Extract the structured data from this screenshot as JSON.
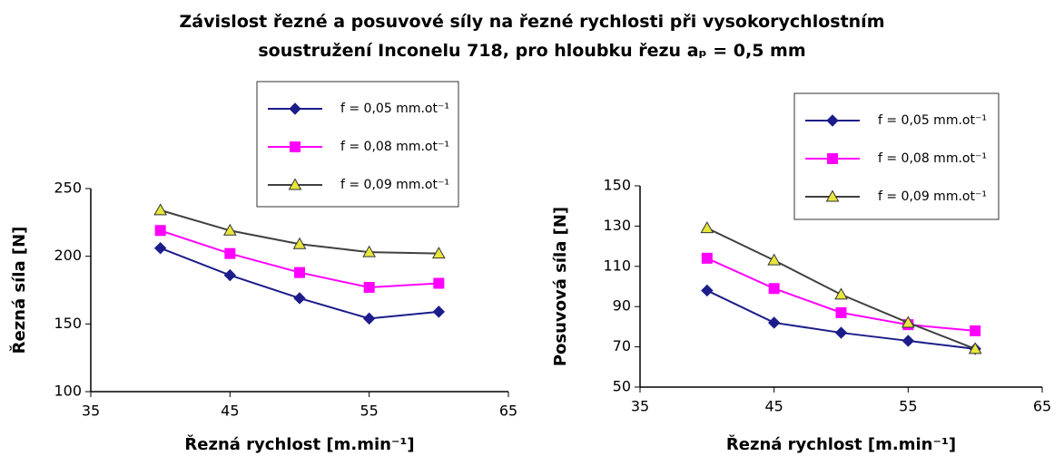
{
  "title": "Závislost řezné a posuvové síly na řezné rychlosti při vysokorychlostním soustružení Inconelu 718, pro hloubku řezu aₚ = 0,5 mm",
  "chart_data": [
    {
      "type": "line",
      "xlabel": "Řezná rychlost [m.min⁻¹]",
      "ylabel": "Řezná síla [N]",
      "x": [
        40,
        45,
        50,
        55,
        60
      ],
      "xlim": [
        35,
        65
      ],
      "xticks": [
        35,
        45,
        55,
        65
      ],
      "ylim": [
        100,
        250
      ],
      "yticks": [
        100,
        150,
        200,
        250
      ],
      "grid": false,
      "legend": "top",
      "series": [
        {
          "name": "f = 0,05 mm.ot⁻¹",
          "color": "#1c1c8a",
          "marker": "diamond",
          "marker_color": "#1c1c8a",
          "values": [
            206,
            186,
            169,
            154,
            159
          ]
        },
        {
          "name": "f = 0,08 mm.ot⁻¹",
          "color": "#ff00ff",
          "marker": "square",
          "marker_color": "#ff00ff",
          "values": [
            219,
            202,
            188,
            177,
            180
          ]
        },
        {
          "name": "f = 0,09 mm.ot⁻¹",
          "color": "#404040",
          "marker": "triangle",
          "marker_color": "#e6e63c",
          "values": [
            234,
            219,
            209,
            203,
            202
          ]
        }
      ]
    },
    {
      "type": "line",
      "xlabel": "Řezná rychlost [m.min⁻¹]",
      "ylabel": "Posuvová síla [N]",
      "x": [
        40,
        45,
        50,
        55,
        60
      ],
      "xlim": [
        35,
        65
      ],
      "xticks": [
        35,
        45,
        55,
        65
      ],
      "ylim": [
        50,
        150
      ],
      "yticks": [
        50,
        70,
        90,
        110,
        130,
        150
      ],
      "grid": false,
      "legend": "top",
      "series": [
        {
          "name": "f = 0,05 mm.ot⁻¹",
          "color": "#1c1c8a",
          "marker": "diamond",
          "marker_color": "#1c1c8a",
          "values": [
            98,
            82,
            77,
            73,
            69
          ]
        },
        {
          "name": "f = 0,08 mm.ot⁻¹",
          "color": "#ff00ff",
          "marker": "square",
          "marker_color": "#ff00ff",
          "values": [
            114,
            99,
            87,
            81,
            78
          ]
        },
        {
          "name": "f = 0,09 mm.ot⁻¹",
          "color": "#404040",
          "marker": "triangle",
          "marker_color": "#e6e63c",
          "values": [
            129,
            113,
            96,
            82,
            69
          ]
        }
      ]
    }
  ]
}
